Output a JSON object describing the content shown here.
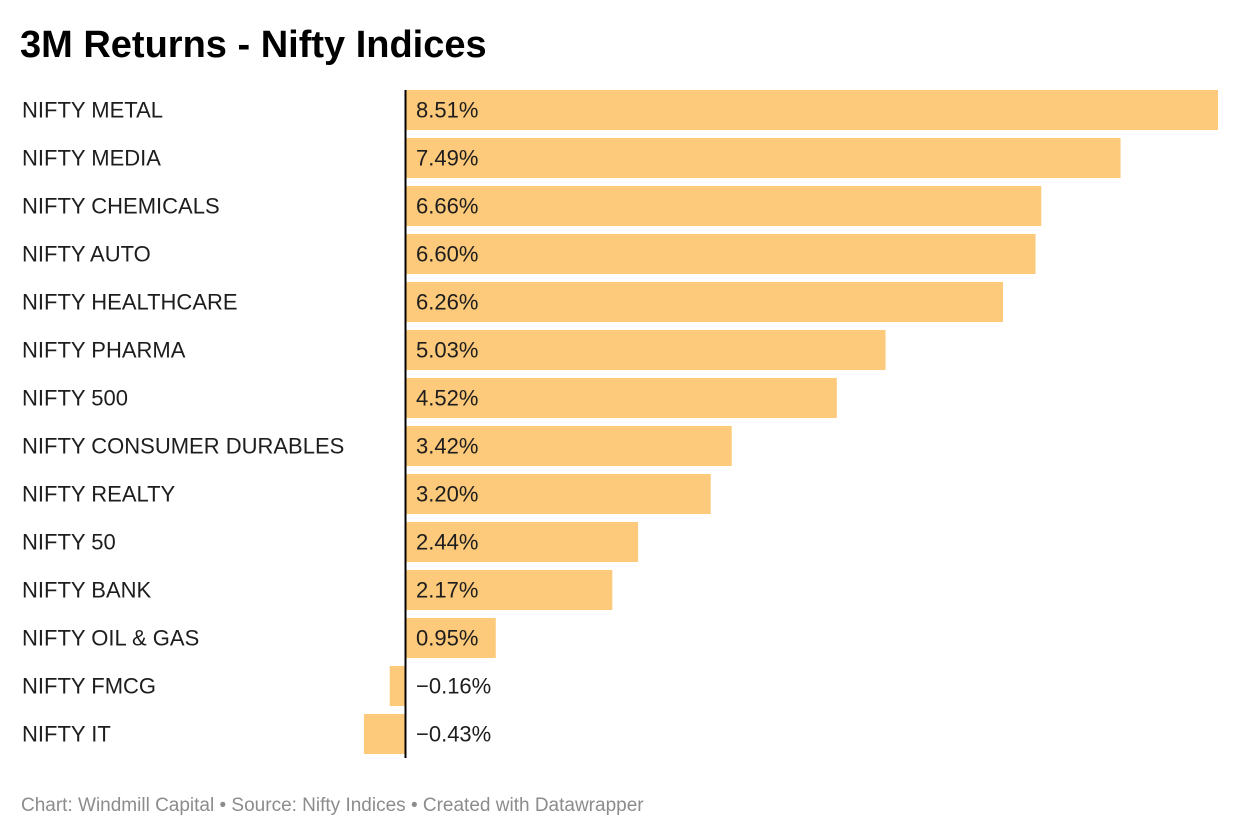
{
  "colors": {
    "bar": "#fdc97a",
    "axis": "#000000",
    "text": "#1d1d1d",
    "footer": "#8c8c8c"
  },
  "footer": {
    "text": "Chart: Windmill Capital • Source: Nifty Indices • Created with Datawrapper"
  },
  "chart_data": {
    "type": "bar",
    "orientation": "horizontal",
    "title": "3M Returns - Nifty Indices",
    "xlabel": "",
    "ylabel": "",
    "unit": "%",
    "grid": false,
    "legend": "none",
    "xlim": [
      -0.43,
      8.51
    ],
    "categories": [
      "NIFTY METAL",
      "NIFTY MEDIA",
      "NIFTY CHEMICALS",
      "NIFTY AUTO",
      "NIFTY HEALTHCARE",
      "NIFTY PHARMA",
      "NIFTY 500",
      "NIFTY CONSUMER DURABLES",
      "NIFTY REALTY",
      "NIFTY 50",
      "NIFTY BANK",
      "NIFTY OIL & GAS",
      "NIFTY FMCG",
      "NIFTY IT"
    ],
    "values": [
      8.51,
      7.49,
      6.66,
      6.6,
      6.26,
      5.03,
      4.52,
      3.42,
      3.2,
      2.44,
      2.17,
      0.95,
      -0.16,
      -0.43
    ],
    "data_labels": [
      "8.51%",
      "7.49%",
      "6.66%",
      "6.60%",
      "6.26%",
      "5.03%",
      "4.52%",
      "3.42%",
      "3.20%",
      "2.44%",
      "2.17%",
      "0.95%",
      "−0.16%",
      "−0.43%"
    ]
  }
}
